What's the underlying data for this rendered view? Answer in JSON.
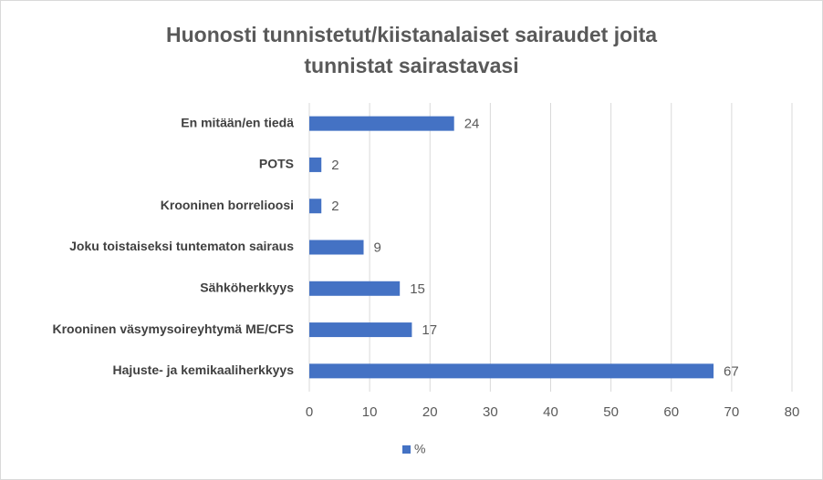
{
  "chart_data": {
    "type": "bar",
    "orientation": "horizontal",
    "title": [
      "Huonosti tunnistetut/kiistanalaiset sairaudet joita",
      "tunnistat sairastavasi"
    ],
    "categories": [
      "En mitään/en tiedä",
      "POTS",
      "Krooninen borrelioosi",
      "Joku toistaiseksi tuntematon sairaus",
      "Sähköherkkyys",
      "Krooninen väsymysoireyhtymä ME/CFS",
      "Hajuste- ja kemikaaliherkkyys"
    ],
    "series": [
      {
        "name": "%",
        "color": "#4472c4",
        "values": [
          24,
          2,
          2,
          9,
          15,
          17,
          67
        ]
      }
    ],
    "xlim": [
      0,
      80
    ],
    "xticks": [
      0,
      10,
      20,
      30,
      40,
      50,
      60,
      70,
      80
    ],
    "grid": true,
    "legend": "bottom"
  }
}
